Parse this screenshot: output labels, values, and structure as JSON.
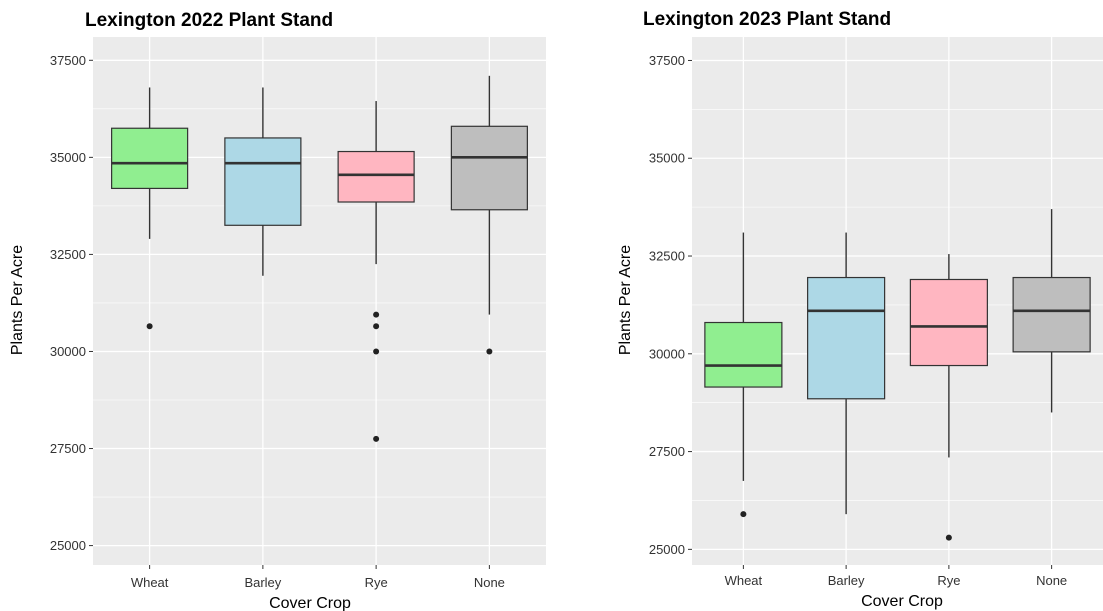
{
  "chart_data": [
    {
      "type": "box",
      "title": "Lexington 2022 Plant Stand",
      "xlabel": "Cover Crop",
      "ylabel": "Plants Per Acre",
      "ylim": [
        24500,
        38100
      ],
      "yticks": [
        "25000",
        "27500",
        "30000",
        "32500",
        "35000",
        "37500"
      ],
      "grid": true,
      "categories": [
        "Wheat",
        "Barley",
        "Rye",
        "None"
      ],
      "boxes": [
        {
          "category": "Wheat",
          "whisker_low": 32900,
          "q1": 34200,
          "median": 34850,
          "q3": 35750,
          "whisker_high": 36800,
          "outliers": [
            30650
          ]
        },
        {
          "category": "Barley",
          "whisker_low": 31950,
          "q1": 33250,
          "median": 34850,
          "q3": 35500,
          "whisker_high": 36800,
          "outliers": []
        },
        {
          "category": "Rye",
          "whisker_low": 32250,
          "q1": 33850,
          "median": 34550,
          "q3": 35150,
          "whisker_high": 36450,
          "outliers": [
            30950,
            30650,
            30000,
            27750
          ]
        },
        {
          "category": "None",
          "whisker_low": 30950,
          "q1": 33650,
          "median": 35000,
          "q3": 35800,
          "whisker_high": 37100,
          "outliers": [
            30000
          ]
        }
      ],
      "colors": {
        "Wheat": "#90ee90",
        "Barley": "#add8e6",
        "Rye": "#ffb6c1",
        "None": "#bebebe"
      }
    },
    {
      "type": "box",
      "title": "Lexington 2023 Plant Stand",
      "xlabel": "Cover Crop",
      "ylabel": "Plants Per Acre",
      "ylim": [
        24600,
        38100
      ],
      "yticks": [
        "25000",
        "27500",
        "30000",
        "32500",
        "35000",
        "37500"
      ],
      "grid": true,
      "categories": [
        "Wheat",
        "Barley",
        "Rye",
        "None"
      ],
      "boxes": [
        {
          "category": "Wheat",
          "whisker_low": 26750,
          "q1": 29150,
          "median": 29700,
          "q3": 30800,
          "whisker_high": 33100,
          "outliers": [
            25900
          ]
        },
        {
          "category": "Barley",
          "whisker_low": 25900,
          "q1": 28850,
          "median": 31100,
          "q3": 31950,
          "whisker_high": 33100,
          "outliers": []
        },
        {
          "category": "Rye",
          "whisker_low": 27350,
          "q1": 29700,
          "median": 30700,
          "q3": 31900,
          "whisker_high": 32550,
          "outliers": [
            25300
          ]
        },
        {
          "category": "None",
          "whisker_low": 28500,
          "q1": 30050,
          "median": 31100,
          "q3": 31950,
          "whisker_high": 33700,
          "outliers": []
        }
      ],
      "colors": {
        "Wheat": "#90ee90",
        "Barley": "#add8e6",
        "Rye": "#ffb6c1",
        "None": "#bebebe"
      }
    }
  ]
}
